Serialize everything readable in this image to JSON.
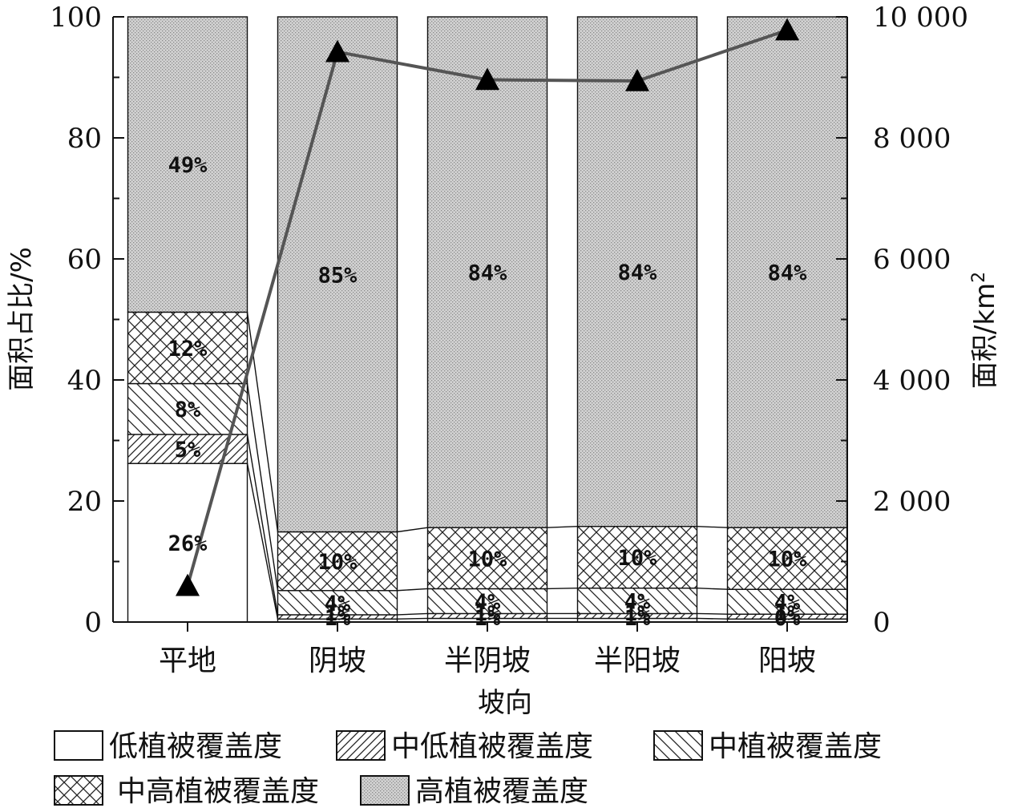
{
  "chart_data": {
    "type": "bar",
    "stacked": true,
    "xlabel": "坡向",
    "ylabel": "面积占比/%",
    "y2label": "面积/km",
    "y2label_superscript": "2",
    "ylim": [
      0,
      100
    ],
    "yticks": [
      "0",
      "20",
      "40",
      "60",
      "80",
      "100"
    ],
    "y2lim": [
      0,
      10000
    ],
    "y2ticks": [
      "0",
      "2 000",
      "4 000",
      "6 000",
      "8 000",
      "10 000"
    ],
    "categories": [
      "平地",
      "阴坡",
      "半阴坡",
      "半阳坡",
      "阳坡"
    ],
    "series": [
      {
        "name": "低植被覆盖度",
        "pattern": "none",
        "values": [
          26.2,
          0.5,
          0.6,
          0.6,
          0.5
        ],
        "labels": [
          "26%",
          "1%",
          "1%",
          "1%",
          "0%"
        ]
      },
      {
        "name": "中低植被覆盖度",
        "pattern": "diag-forward",
        "values": [
          4.8,
          0.7,
          0.8,
          0.8,
          0.8
        ],
        "labels": [
          "5%",
          "1%",
          "1%",
          "1%",
          "1%"
        ]
      },
      {
        "name": "中植被覆盖度",
        "pattern": "diag-back",
        "values": [
          8.4,
          4.0,
          4.1,
          4.2,
          4.1
        ],
        "labels": [
          "8%",
          "4%",
          "4%",
          "4%",
          "4%"
        ]
      },
      {
        "name": "中高植被覆盖度",
        "pattern": "crosshatch",
        "values": [
          11.8,
          9.7,
          10.1,
          10.2,
          10.2
        ],
        "labels": [
          "12%",
          "10%",
          "10%",
          "10%",
          "10%"
        ]
      },
      {
        "name": "高植被覆盖度",
        "pattern": "dots",
        "values": [
          48.8,
          85.1,
          84.4,
          84.2,
          84.4
        ],
        "labels": [
          "49%",
          "85%",
          "84%",
          "84%",
          "84%"
        ]
      }
    ],
    "line": {
      "axis": "right",
      "marker": "triangle",
      "values": [
        600,
        9420,
        8960,
        8940,
        9780
      ]
    },
    "legend_position": "bottom"
  }
}
